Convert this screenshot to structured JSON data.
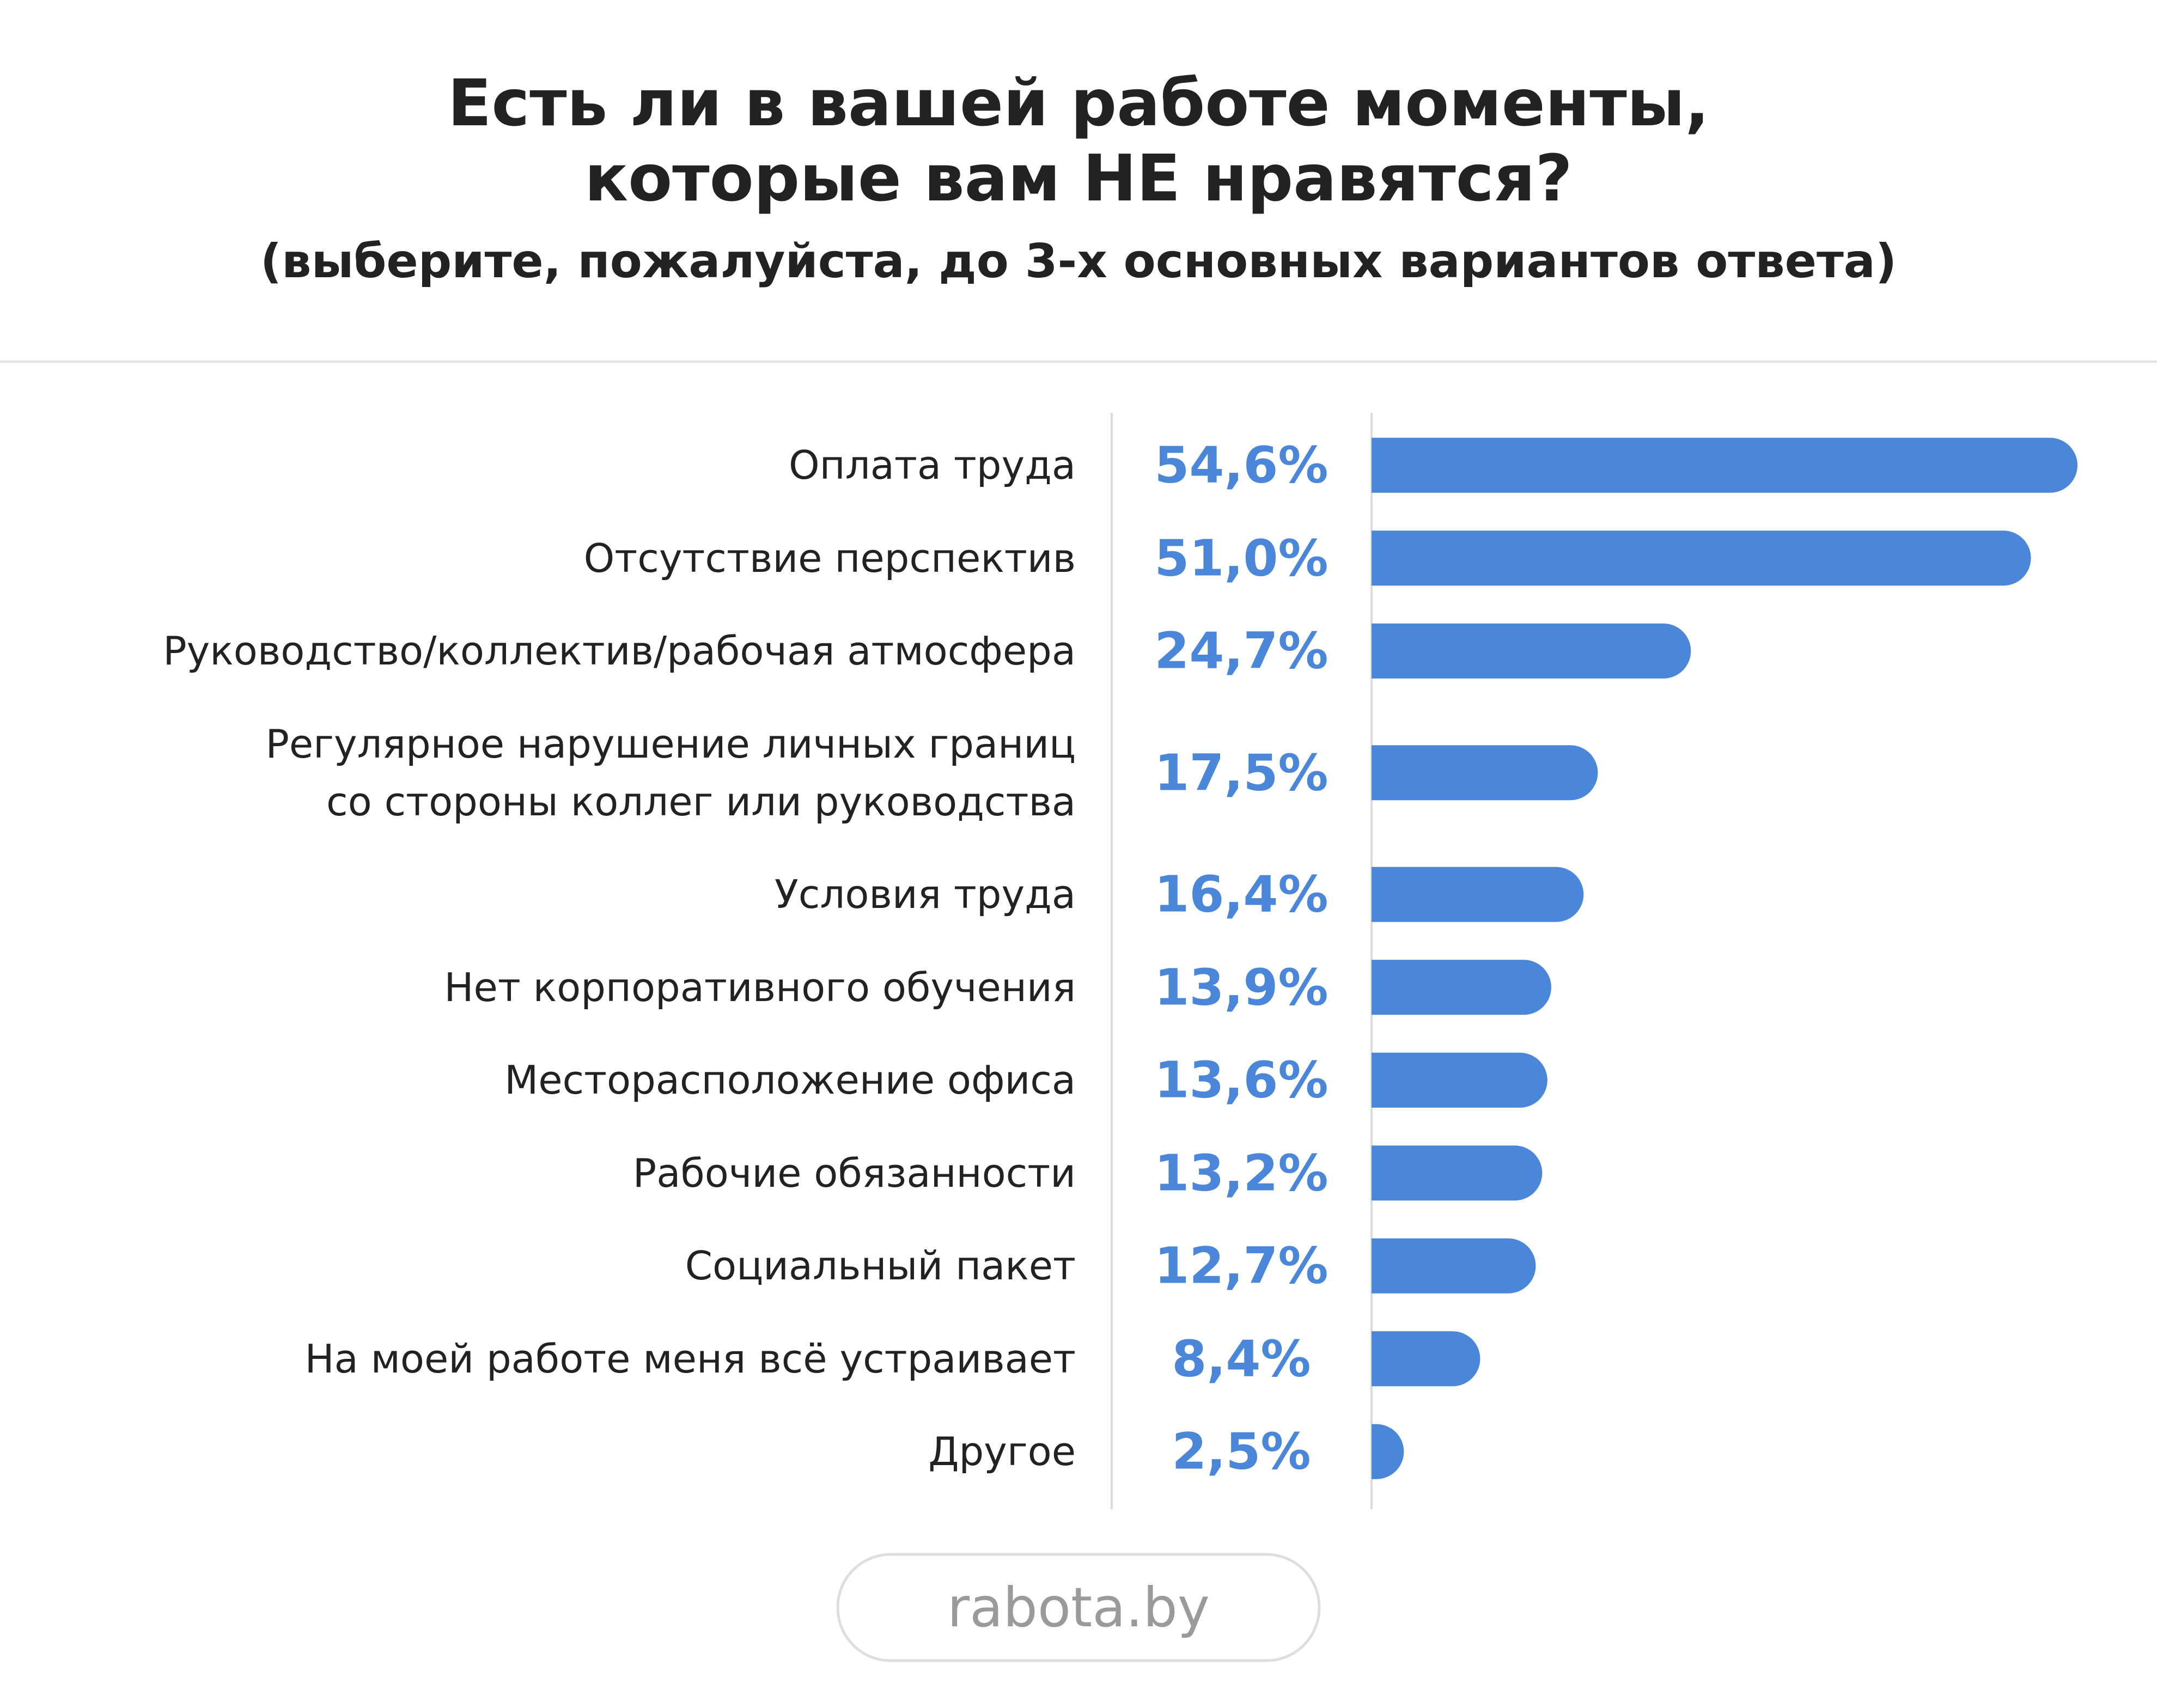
{
  "chart_data": {
    "type": "bar",
    "orientation": "horizontal",
    "title": "Есть ли в вашей работе моменты,\nкоторые вам НЕ нравятся?",
    "subtitle": "(выберите, пожалуйста, до 3-х основных вариантов ответа)",
    "categories": [
      "Оплата труда",
      "Отсутствие перспектив",
      "Руководство/коллектив/рабочая атмосфера",
      "Регулярное нарушение личных границ\nсо стороны коллег или руководства",
      "Условия труда",
      "Нет корпоративного обучения",
      "Месторасположение офиса",
      "Рабочие обязанности",
      "Социальный пакет",
      "На моей работе меня всё устраивает",
      "Другое"
    ],
    "values": [
      54.6,
      51.0,
      24.7,
      17.5,
      16.4,
      13.9,
      13.6,
      13.2,
      12.7,
      8.4,
      2.5
    ],
    "value_labels": [
      "54,6%",
      "51,0%",
      "24,7%",
      "17,5%",
      "16,4%",
      "13,9%",
      "13,6%",
      "13,2%",
      "12,7%",
      "8,4%",
      "2,5%"
    ],
    "color": "#4a86d9",
    "source": "rabota.by"
  }
}
